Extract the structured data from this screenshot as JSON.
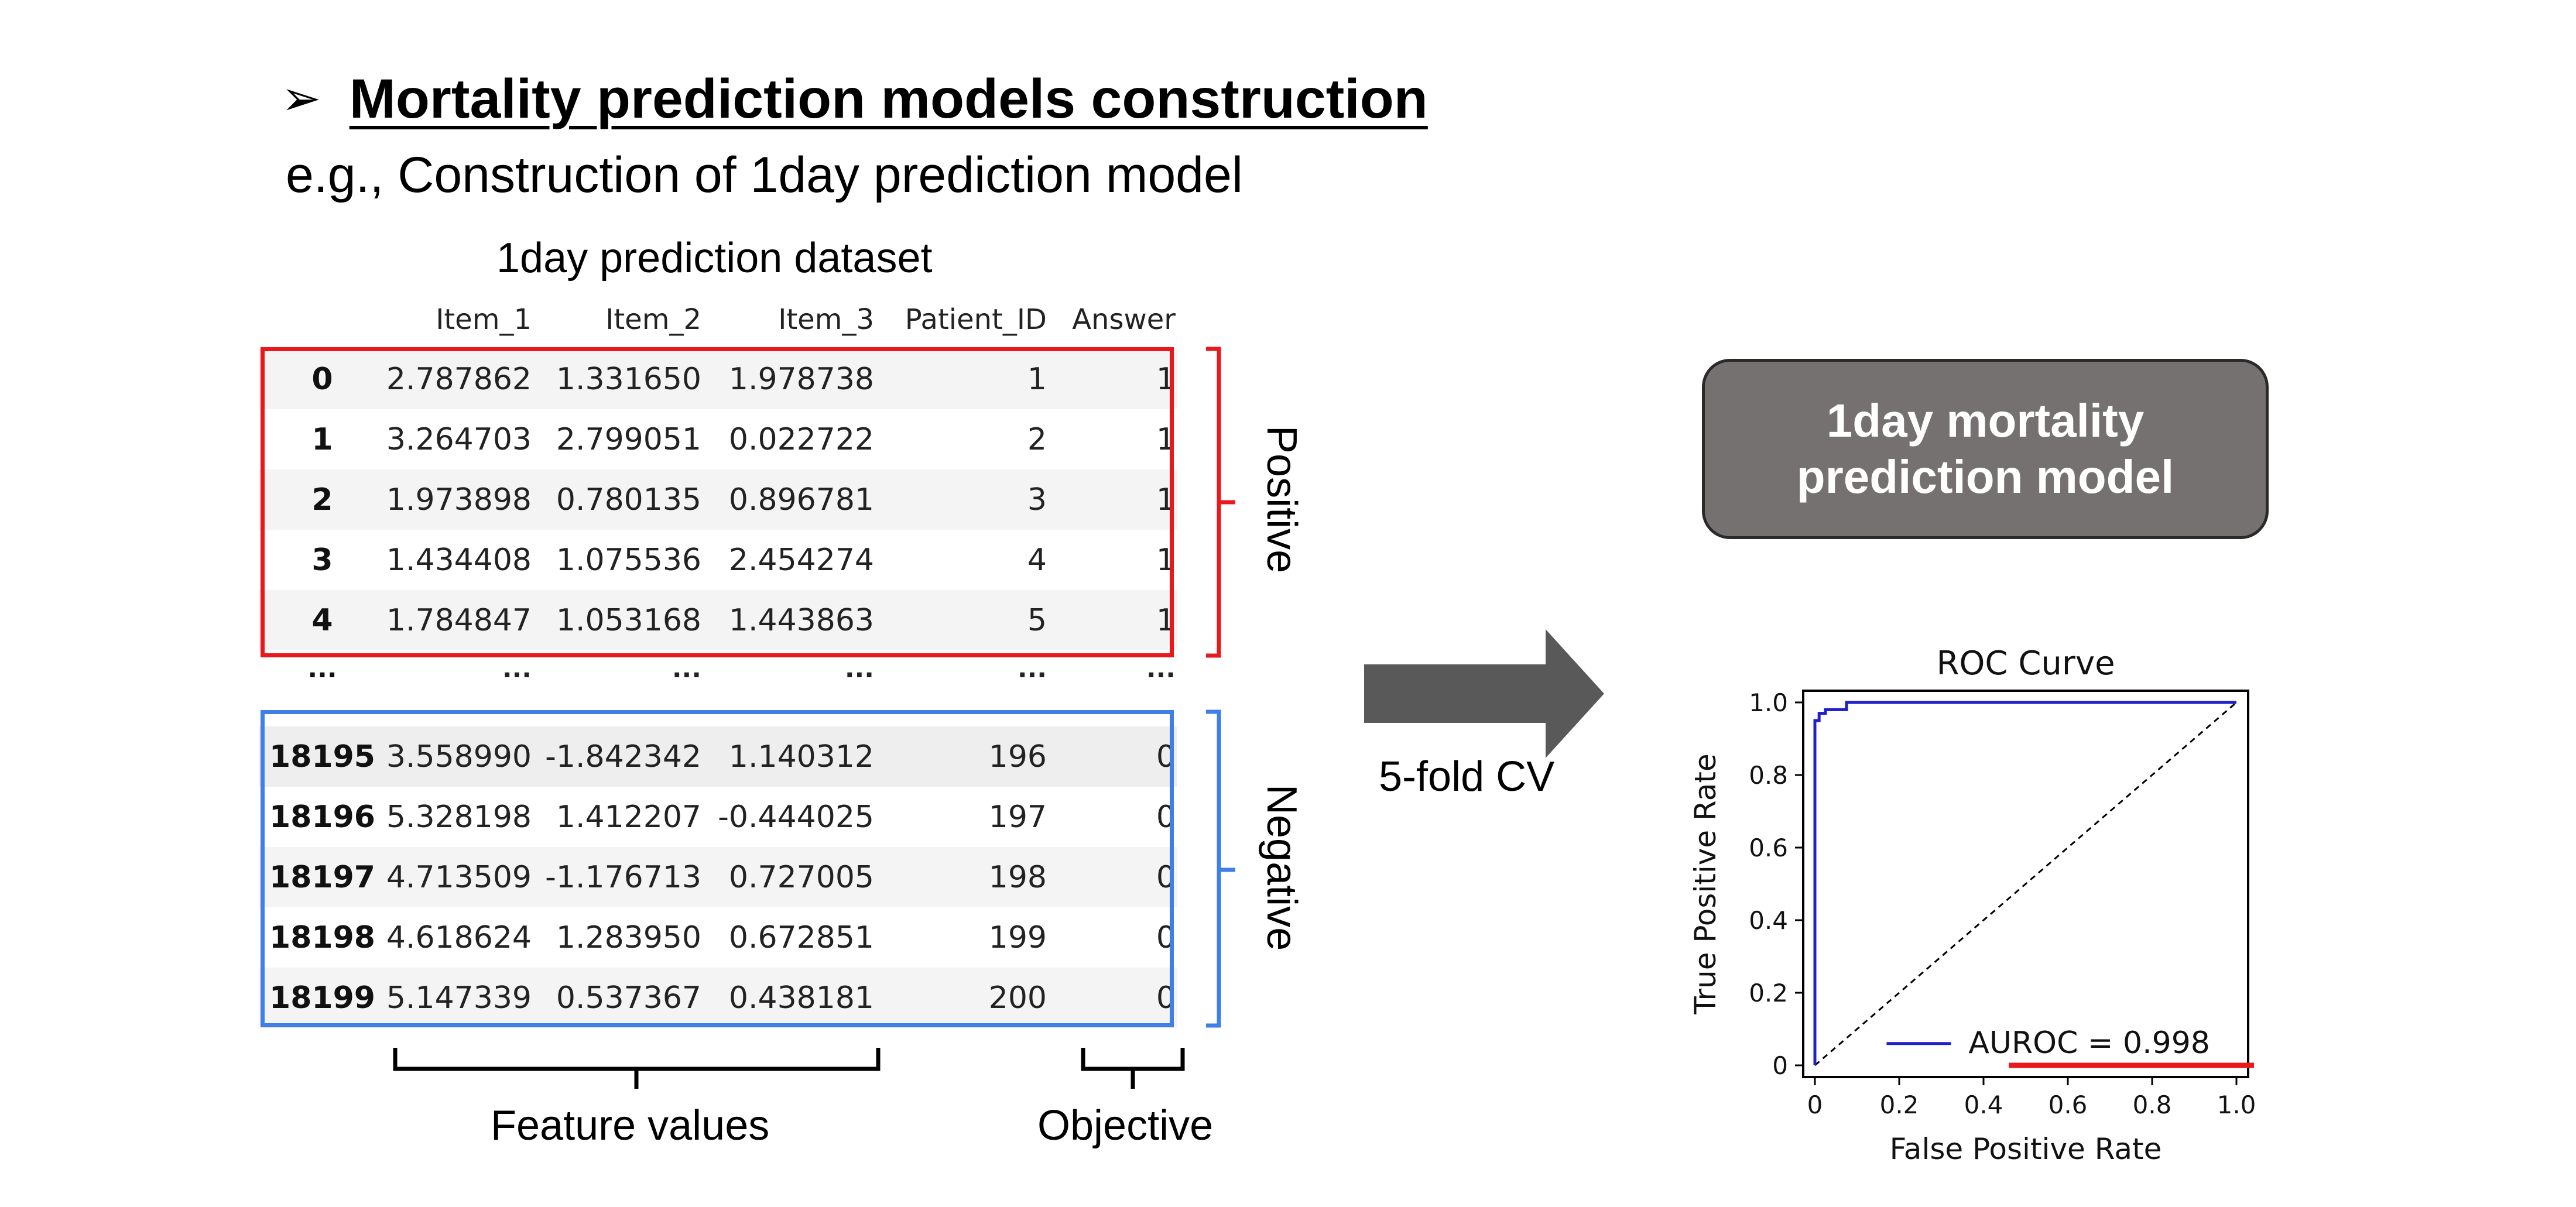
{
  "heading": {
    "bullet": "➢",
    "title": "Mortality prediction models construction"
  },
  "subheading": "e.g., Construction of 1day prediction model",
  "table": {
    "title": "1day prediction dataset",
    "columns": [
      "",
      "Item_1",
      "Item_2",
      "Item_3",
      "Patient_ID",
      "Answer"
    ],
    "positive_rows": [
      [
        "0",
        "2.787862",
        "1.331650",
        "1.978738",
        "1",
        "1"
      ],
      [
        "1",
        "3.264703",
        "2.799051",
        "0.022722",
        "2",
        "1"
      ],
      [
        "2",
        "1.973898",
        "0.780135",
        "0.896781",
        "3",
        "1"
      ],
      [
        "3",
        "1.434408",
        "1.075536",
        "2.454274",
        "4",
        "1"
      ],
      [
        "4",
        "1.784847",
        "1.053168",
        "1.443863",
        "5",
        "1"
      ]
    ],
    "ellipsis_row": [
      "...",
      "...",
      "...",
      "...",
      "...",
      "..."
    ],
    "negative_rows": [
      [
        "18195",
        "3.558990",
        "-1.842342",
        "1.140312",
        "196",
        "0"
      ],
      [
        "18196",
        "5.328198",
        "1.412207",
        "-0.444025",
        "197",
        "0"
      ],
      [
        "18197",
        "4.713509",
        "-1.176713",
        "0.727005",
        "198",
        "0"
      ],
      [
        "18198",
        "4.618624",
        "1.283950",
        "0.672851",
        "199",
        "0"
      ],
      [
        "18199",
        "5.147339",
        "0.537367",
        "0.438181",
        "200",
        "0"
      ]
    ]
  },
  "labels": {
    "positive": "Positive",
    "negative": "Negative",
    "feature_values": "Feature values",
    "objective": "Objective",
    "cv": "5-fold CV"
  },
  "model_box": {
    "line1": "1day mortality",
    "line2": "prediction model"
  },
  "colors": {
    "positive": "#e8181c",
    "negative": "#3f7fe6",
    "model_box": "#757171",
    "arrow": "#595959",
    "roc_line": "#1f1fcc"
  },
  "chart_data": {
    "type": "line",
    "title": "ROC Curve",
    "xlabel": "False Positive Rate",
    "ylabel": "True Positive Rate",
    "xlim": [
      0,
      1.0
    ],
    "ylim": [
      0,
      1.0
    ],
    "xticks": [
      "0",
      "0.2",
      "0.4",
      "0.6",
      "0.8",
      "1.0"
    ],
    "yticks": [
      "0",
      "0.2",
      "0.4",
      "0.6",
      "0.8",
      "1.0"
    ],
    "legend_position": "lower-right",
    "series": [
      {
        "name": "AUROC = 0.998",
        "x": [
          0,
          0.0,
          0.01,
          0.01,
          0.025,
          0.025,
          0.075,
          0.075,
          1.0
        ],
        "y": [
          0,
          0.95,
          0.95,
          0.97,
          0.97,
          0.98,
          0.98,
          1.0,
          1.0
        ]
      }
    ],
    "reference_line": {
      "x": [
        0,
        1
      ],
      "y": [
        0,
        1
      ],
      "style": "dashed"
    }
  }
}
